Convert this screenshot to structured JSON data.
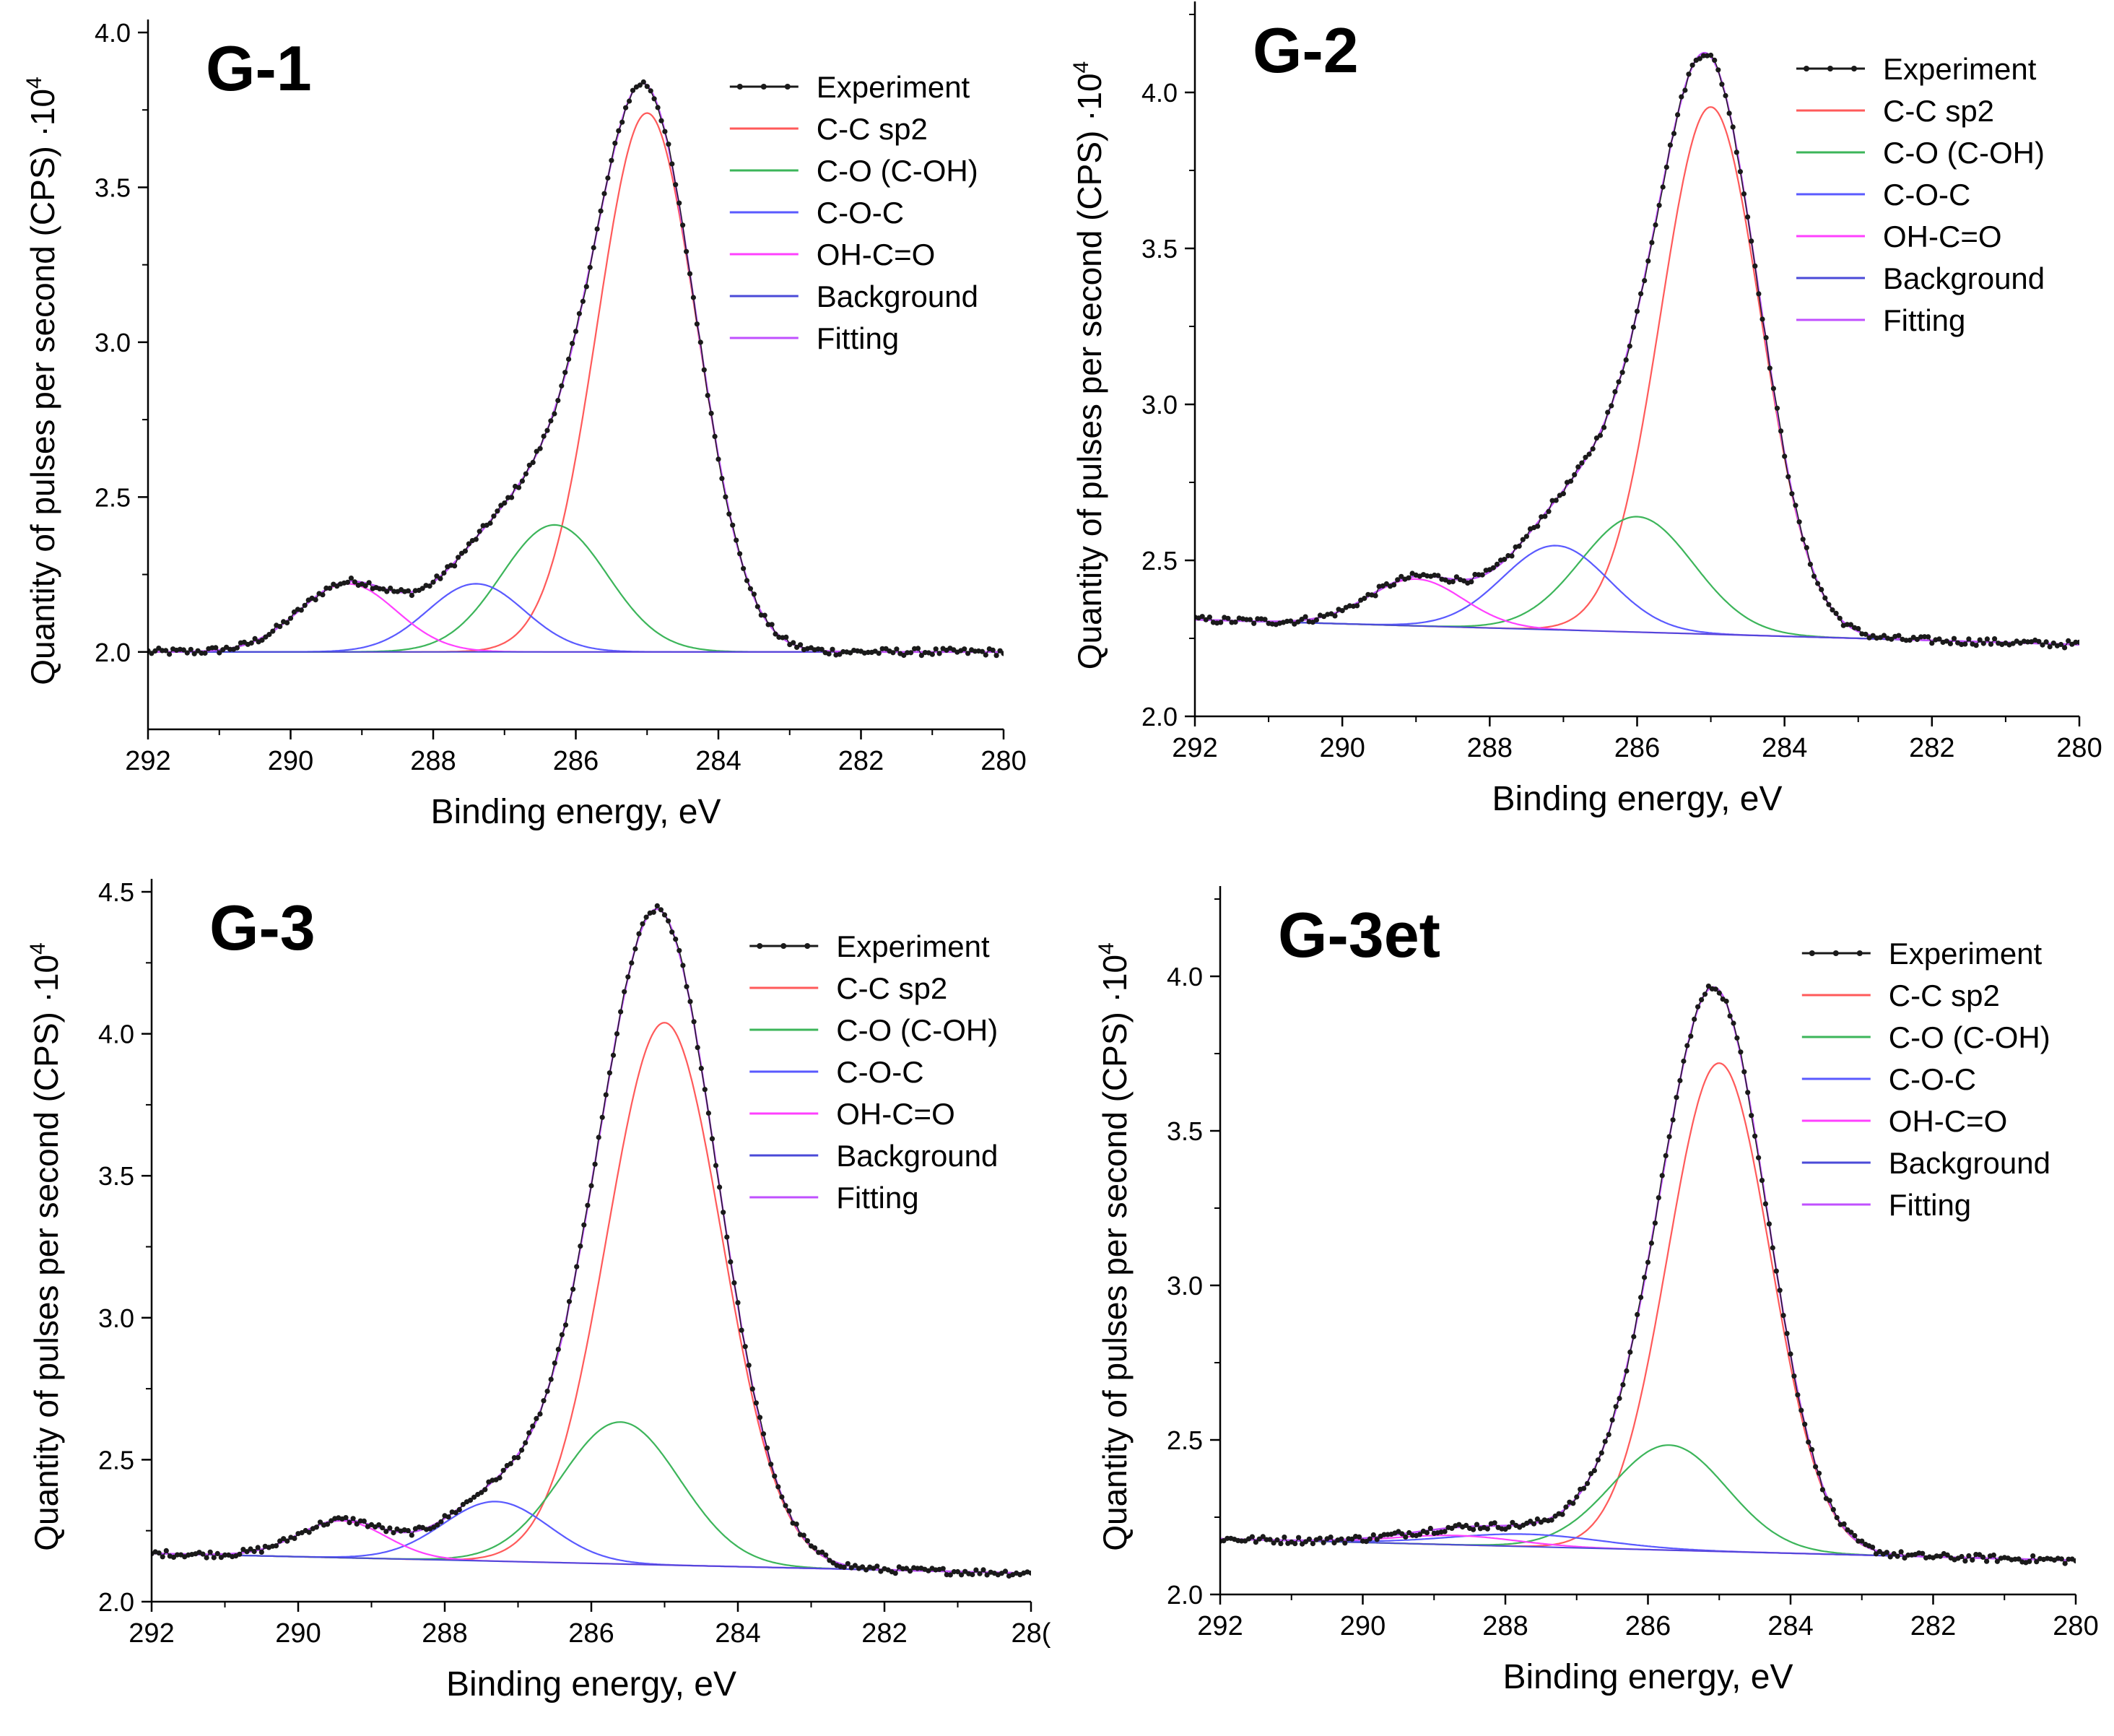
{
  "figure": {
    "caption": ""
  },
  "legend_labels": [
    "Experiment",
    "C-C sp2",
    "C-O (C-OH)",
    "C-O-C",
    "OH-C=O",
    "Background",
    "Fitting"
  ],
  "colors": {
    "experiment": "#1a1a1a",
    "cc_sp2": "#ff5a5a",
    "co_coh": "#3cb55a",
    "coc": "#5a5aff",
    "ohco": "#ff40ff",
    "background": "#4a4ad8",
    "fitting": "#c050ff",
    "axis": "#000000"
  },
  "chart_data": [
    {
      "type": "line",
      "panel": "G-1",
      "title": "G-1",
      "xlabel": "Binding energy, eV",
      "ylabel": "Quantity of pulses per second  (CPS) ·10",
      "ylabel_exp": "4",
      "xlim": [
        292,
        280
      ],
      "ylim": [
        1.75,
        4.0
      ],
      "xticks": [
        "292",
        "290",
        "288",
        "286",
        "284",
        "282",
        "280"
      ],
      "yticks": [
        "2.0",
        "2.5",
        "3.0",
        "3.5",
        "4.0"
      ],
      "legend": [
        "Experiment",
        "C-C sp2",
        "C-O (C-OH)",
        "C-O-C",
        "OH-C=O",
        "Background",
        "Fitting"
      ],
      "background": {
        "start": 2.0,
        "end": 2.0
      },
      "noise_level": 0.012,
      "components": [
        {
          "name": "C-C sp2",
          "center": 285.0,
          "height": 1.74,
          "fwhm": 1.65
        },
        {
          "name": "C-O (C-OH)",
          "center": 286.3,
          "height": 0.41,
          "fwhm": 1.75
        },
        {
          "name": "C-O-C",
          "center": 287.4,
          "height": 0.22,
          "fwhm": 1.6
        },
        {
          "name": "OH-C=O",
          "center": 289.2,
          "height": 0.22,
          "fwhm": 1.6
        }
      ]
    },
    {
      "type": "line",
      "panel": "G-2",
      "title": "G-2",
      "xlabel": "Binding energy, eV",
      "ylabel": "Quantity of pulses per second  (CPS) ·10",
      "ylabel_exp": "4",
      "xlim": [
        292,
        280
      ],
      "ylim": [
        2.0,
        4.25
      ],
      "xticks": [
        "292",
        "290",
        "288",
        "286",
        "284",
        "282",
        "280"
      ],
      "yticks": [
        "2.0",
        "2.5",
        "3.0",
        "3.5",
        "4.0"
      ],
      "legend": [
        "Experiment",
        "C-C sp2",
        "C-O (C-OH)",
        "C-O-C",
        "OH-C=O",
        "Background",
        "Fitting"
      ],
      "background": {
        "start": 2.31,
        "end": 2.23
      },
      "noise_level": 0.012,
      "components": [
        {
          "name": "C-C sp2",
          "center": 285.0,
          "height": 1.69,
          "fwhm": 1.6
        },
        {
          "name": "C-O (C-OH)",
          "center": 286.0,
          "height": 0.37,
          "fwhm": 1.8
        },
        {
          "name": "C-O-C",
          "center": 287.1,
          "height": 0.27,
          "fwhm": 1.7
        },
        {
          "name": "OH-C=O",
          "center": 289.0,
          "height": 0.15,
          "fwhm": 1.5
        }
      ]
    },
    {
      "type": "line",
      "panel": "G-3",
      "title": "G-3",
      "xlabel": "Binding energy, eV",
      "ylabel": "Quantity of pulses per second  (CPS) ·10",
      "ylabel_exp": "4",
      "xlim": [
        292,
        280
      ],
      "ylim": [
        2.0,
        4.5
      ],
      "xticks": [
        "292",
        "290",
        "288",
        "286",
        "284",
        "282",
        "28("
      ],
      "yticks": [
        "2.0",
        "2.5",
        "3.0",
        "3.5",
        "4.0",
        "4.5"
      ],
      "legend": [
        "Experiment",
        "C-C sp2",
        "C-O (C-OH)",
        "C-O-C",
        "OH-C=O",
        "Background",
        "Fitting"
      ],
      "background": {
        "start": 2.17,
        "end": 2.1
      },
      "noise_level": 0.012,
      "components": [
        {
          "name": "C-C sp2",
          "center": 285.0,
          "height": 1.91,
          "fwhm": 1.85
        },
        {
          "name": "C-O (C-OH)",
          "center": 285.6,
          "height": 0.5,
          "fwhm": 1.9
        },
        {
          "name": "C-O-C",
          "center": 287.3,
          "height": 0.21,
          "fwhm": 1.7
        },
        {
          "name": "OH-C=O",
          "center": 289.4,
          "height": 0.13,
          "fwhm": 1.4
        }
      ]
    },
    {
      "type": "line",
      "panel": "G-3et",
      "title": "G-3et",
      "xlabel": "Binding energy, eV",
      "ylabel": "Quantity of pulses per second  (CPS) ·10",
      "ylabel_exp": "4",
      "xlim": [
        292,
        280
      ],
      "ylim": [
        2.0,
        4.25
      ],
      "xticks": [
        "292",
        "290",
        "288",
        "286",
        "284",
        "282",
        "280"
      ],
      "yticks": [
        "2.0",
        "2.5",
        "3.0",
        "3.5",
        "4.0"
      ],
      "legend": [
        "Experiment",
        "C-C sp2",
        "C-O (C-OH)",
        "C-O-C",
        "OH-C=O",
        "Background",
        "Fitting"
      ],
      "background": {
        "start": 2.18,
        "end": 2.11
      },
      "noise_level": 0.012,
      "components": [
        {
          "name": "C-C sp2",
          "center": 285.0,
          "height": 1.58,
          "fwhm": 1.7
        },
        {
          "name": "C-O (C-OH)",
          "center": 285.7,
          "height": 0.34,
          "fwhm": 1.9
        },
        {
          "name": "C-O-C",
          "center": 287.7,
          "height": 0.04,
          "fwhm": 2.5
        },
        {
          "name": "OH-C=O",
          "center": 288.7,
          "height": 0.03,
          "fwhm": 2.0
        }
      ]
    }
  ]
}
